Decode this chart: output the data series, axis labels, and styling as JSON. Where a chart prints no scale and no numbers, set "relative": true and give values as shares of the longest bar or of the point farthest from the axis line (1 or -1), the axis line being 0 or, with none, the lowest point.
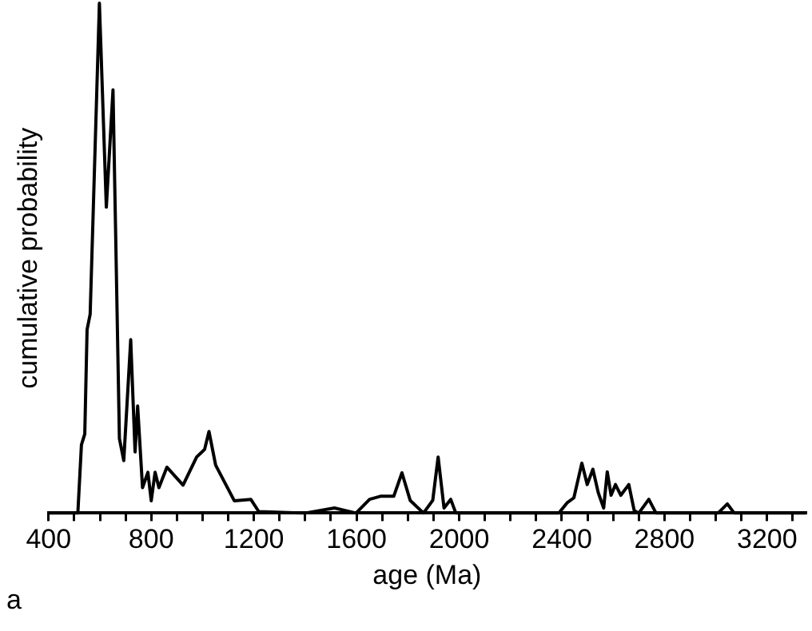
{
  "chart_data": {
    "type": "line",
    "relative": true,
    "xlabel": "age (Ma)",
    "ylabel": "cumulative probability",
    "annotations": [
      "a"
    ],
    "marker": "none",
    "legend": false,
    "grid": false,
    "tick_labels": "x",
    "xlim": [
      400,
      3350
    ],
    "xticks": [
      400,
      {
        "value": 500,
        "label": null
      },
      {
        "value": 600,
        "label": null
      },
      {
        "value": 700,
        "label": null
      },
      800,
      {
        "value": 900,
        "label": null
      },
      {
        "value": 1000,
        "label": null
      },
      {
        "value": 1100,
        "label": null
      },
      1200,
      {
        "value": 1300,
        "label": null
      },
      {
        "value": 1400,
        "label": null
      },
      {
        "value": 1500,
        "label": null
      },
      1600,
      {
        "value": 1700,
        "label": null
      },
      {
        "value": 1800,
        "label": null
      },
      {
        "value": 1900,
        "label": null
      },
      2000,
      {
        "value": 2100,
        "label": null
      },
      {
        "value": 2200,
        "label": null
      },
      {
        "value": 2300,
        "label": null
      },
      2400,
      {
        "value": 2500,
        "label": null
      },
      {
        "value": 2600,
        "label": null
      },
      {
        "value": 2700,
        "label": null
      },
      2800,
      {
        "value": 2900,
        "label": null
      },
      {
        "value": 3000,
        "label": null
      },
      {
        "value": 3100,
        "label": null
      },
      3200,
      {
        "value": 3300,
        "label": null
      }
    ],
    "series": [
      {
        "color": "#000000",
        "x": [
          400,
          514,
          528,
          541,
          550,
          562,
          598,
          625,
          651,
          676,
          693,
          720,
          737,
          747,
          766,
          787,
          800,
          815,
          830,
          861,
          924,
          977,
          1008,
          1025,
          1051,
          1124,
          1188,
          1219,
          1400,
          1514,
          1598,
          1651,
          1693,
          1745,
          1777,
          1809,
          1861,
          1897,
          1918,
          1941,
          1967,
          1987,
          2388,
          2420,
          2447,
          2478,
          2499,
          2521,
          2542,
          2563,
          2577,
          2592,
          2609,
          2630,
          2661,
          2682,
          2700,
          2739,
          2767,
          3009,
          3045,
          3072,
          3350
        ],
        "values": [
          0,
          0,
          0.134,
          0.155,
          0.36,
          0.39,
          1,
          0.6,
          0.83,
          0.146,
          0.103,
          0.34,
          0.12,
          0.21,
          0.05,
          0.08,
          0.024,
          0.08,
          0.05,
          0.09,
          0.055,
          0.11,
          0.125,
          0.16,
          0.094,
          0.024,
          0.027,
          0.003,
          0,
          0.01,
          0,
          0.027,
          0.033,
          0.033,
          0.079,
          0.025,
          0,
          0.025,
          0.11,
          0.01,
          0.027,
          0,
          0,
          0.02,
          0.03,
          0.098,
          0.056,
          0.086,
          0.04,
          0.01,
          0.081,
          0.035,
          0.056,
          0.035,
          0.056,
          0.005,
          0,
          0.027,
          0,
          0,
          0.018,
          0,
          0
        ]
      }
    ]
  }
}
